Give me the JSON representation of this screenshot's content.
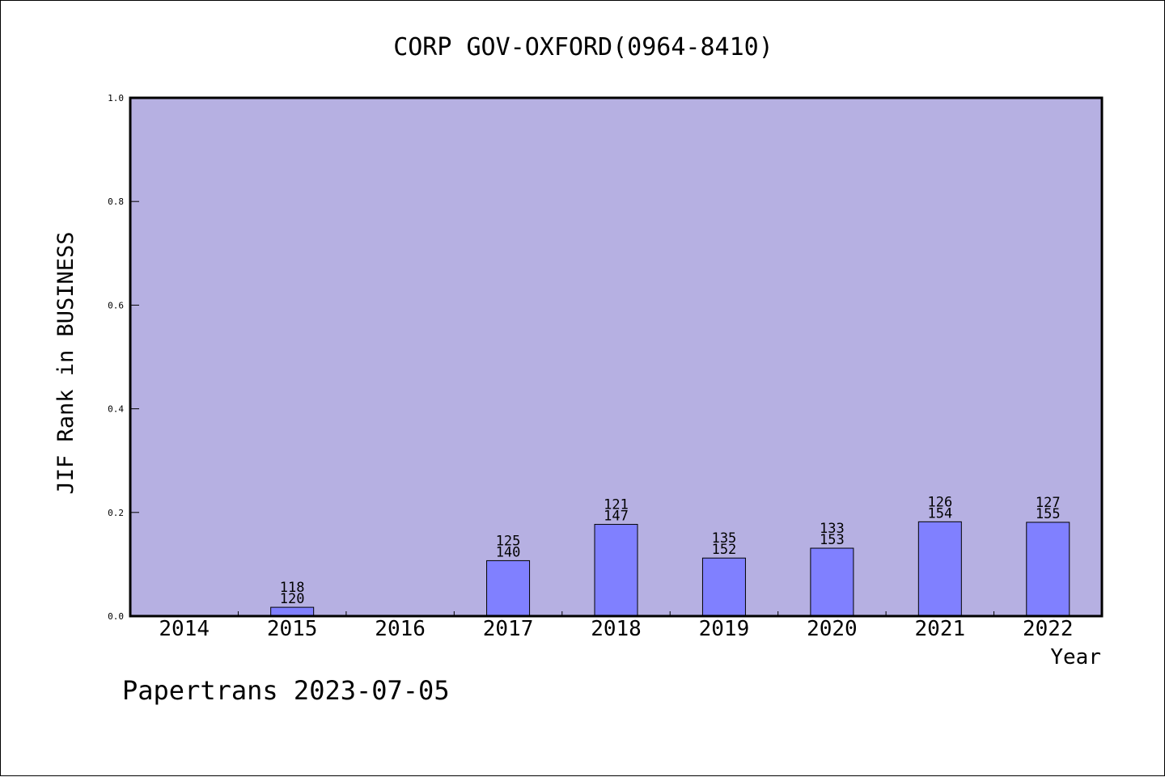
{
  "chart_data": {
    "type": "bar",
    "title": "CORP GOV-OXFORD(0964-8410)",
    "xlabel": "Year",
    "ylabel": "JIF Rank in BUSINESS",
    "categories": [
      "2014",
      "2015",
      "2016",
      "2017",
      "2018",
      "2019",
      "2020",
      "2021",
      "2022"
    ],
    "values": [
      null,
      0.017,
      null,
      0.107,
      0.177,
      0.112,
      0.131,
      0.182,
      0.181
    ],
    "bar_labels": [
      null,
      {
        "rank": "118",
        "total": "120"
      },
      null,
      {
        "rank": "125",
        "total": "140"
      },
      {
        "rank": "121",
        "total": "147"
      },
      {
        "rank": "135",
        "total": "152"
      },
      {
        "rank": "133",
        "total": "153"
      },
      {
        "rank": "126",
        "total": "154"
      },
      {
        "rank": "127",
        "total": "155"
      }
    ],
    "ylim": [
      0,
      1.0
    ],
    "yticks": [
      "0.0",
      "0.2",
      "0.4",
      "0.6",
      "0.8",
      "1.0"
    ],
    "grid": false,
    "legend": "none",
    "colors": {
      "plot_background": "#b6b0e2",
      "bar": "#8080ff",
      "bar_edge": "#000000"
    }
  },
  "footer": "Papertrans 2023-07-05"
}
